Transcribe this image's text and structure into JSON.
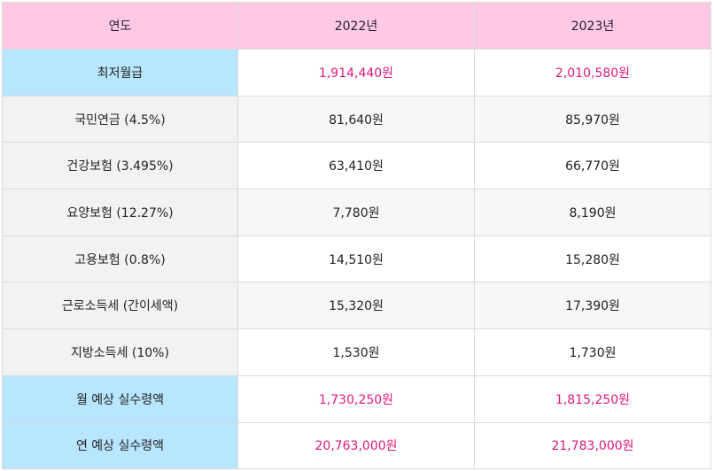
{
  "header": {
    "col0": "연도",
    "col1": "2022년",
    "col2": "2023년"
  },
  "rows": [
    {
      "label": "최저월급",
      "v2022": "1,914,440원",
      "v2023": "2,010,580원",
      "style": "highlight"
    },
    {
      "label": "국민연금 (4.5%)",
      "v2022": "81,640원",
      "v2023": "85,970원",
      "style": "gray"
    },
    {
      "label": "건강보험 (3.495%)",
      "v2022": "63,410원",
      "v2023": "66,770원",
      "style": "white"
    },
    {
      "label": "요양보험 (12.27%)",
      "v2022": "7,780원",
      "v2023": "8,190원",
      "style": "gray"
    },
    {
      "label": "고용보험 (0.8%)",
      "v2022": "14,510원",
      "v2023": "15,280원",
      "style": "white"
    },
    {
      "label": "근로소득세 (간이세액)",
      "v2022": "15,320원",
      "v2023": "17,390원",
      "style": "gray"
    },
    {
      "label": "지방소득세 (10%)",
      "v2022": "1,530원",
      "v2023": "1,730원",
      "style": "white"
    },
    {
      "label": "월 예상 실수령액",
      "v2022": "1,730,250원",
      "v2023": "1,815,250원",
      "style": "highlight"
    },
    {
      "label": "연 예상 실수령액",
      "v2022": "20,763,000원",
      "v2023": "21,783,000원",
      "style": "highlight"
    }
  ],
  "colors": {
    "header_bg": "#ffc9e6",
    "label_blue": "#b9e6ff",
    "highlight_text": "#e0197a"
  }
}
